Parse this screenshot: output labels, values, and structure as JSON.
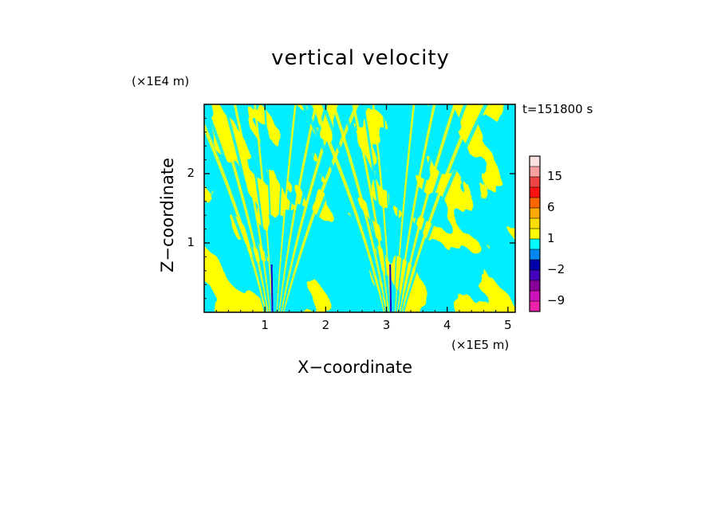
{
  "chart_data": {
    "type": "heatmap",
    "title": "vertical velocity",
    "xlabel": "X−coordinate",
    "ylabel": "Z−coordinate",
    "x_unit": "(×1E5 m)",
    "y_unit": "(×1E4 m)",
    "time_label": "t=151800 s",
    "xlim": [
      0,
      5.12
    ],
    "ylim": [
      0,
      3.0
    ],
    "x_ticks": [
      {
        "value": 1,
        "label": "1"
      },
      {
        "value": 2,
        "label": "2"
      },
      {
        "value": 3,
        "label": "3"
      },
      {
        "value": 4,
        "label": "4"
      },
      {
        "value": 5,
        "label": "5"
      }
    ],
    "y_ticks": [
      {
        "value": 1,
        "label": "1"
      },
      {
        "value": 2,
        "label": "2"
      }
    ],
    "colorbar": {
      "levels": [
        -12,
        -9,
        -6,
        -3,
        -2,
        -1,
        0,
        1,
        2,
        3,
        6,
        9,
        12,
        15,
        18,
        21
      ],
      "colors": [
        "#ee22aa",
        "#cc11bb",
        "#880099",
        "#4400bb",
        "#0000aa",
        "#0088ee",
        "#00ffff",
        "#ffff00",
        "#ffdd00",
        "#ffaa00",
        "#ff6600",
        "#ff1111",
        "#ee4444",
        "#f6a0a0",
        "#fde0e0"
      ],
      "labels": [
        {
          "value": -9,
          "label": "−9"
        },
        {
          "value": -2,
          "label": "−2"
        },
        {
          "value": 1,
          "label": "1"
        },
        {
          "value": 6,
          "label": "6"
        },
        {
          "value": 15,
          "label": "15"
        }
      ]
    },
    "field_colors": {
      "positive": "#ffff00",
      "negative": "#00eeff",
      "strong_negative": "#2200cc"
    }
  }
}
